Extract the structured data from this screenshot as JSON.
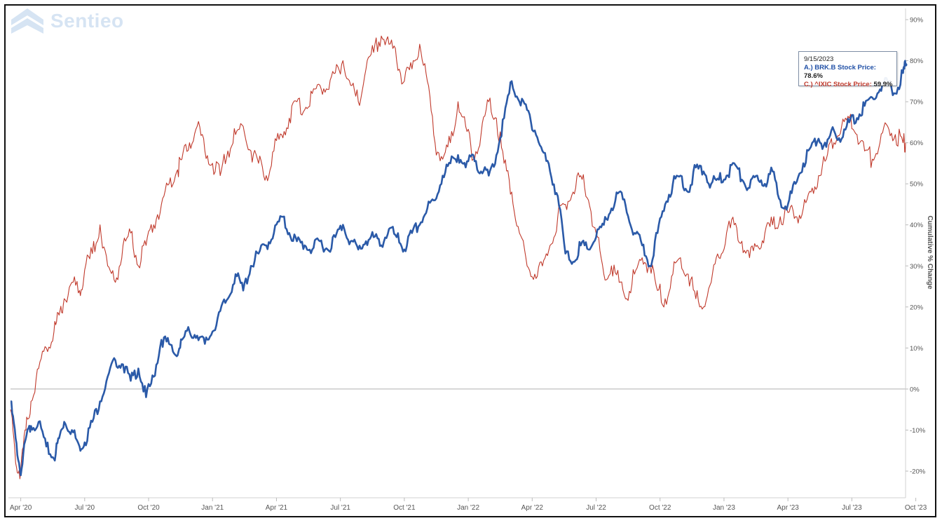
{
  "logo": {
    "text": "Sentieo"
  },
  "tooltip": {
    "date": "9/15/2023",
    "series_a_label": "A.) BRK.B Stock Price:",
    "series_a_value": "78.6%",
    "series_c_label": "C.) ^IXIC Stock Price:",
    "series_c_value": "59.9%"
  },
  "colors": {
    "series_a": "#2b5aa8",
    "series_c": "#c0392b",
    "zero_line": "#b0b0b0",
    "axis_text": "#555555"
  },
  "chart_data": {
    "type": "line",
    "title": "",
    "xlabel": "",
    "ylabel": "Cumulative % Change",
    "ylim": [
      -22,
      92
    ],
    "xlim": [
      2020.2,
      2023.75
    ],
    "y_ticks": [
      -20,
      -10,
      0,
      10,
      20,
      30,
      40,
      50,
      60,
      70,
      80,
      90
    ],
    "y_tick_labels": [
      "-20%",
      "-10%",
      "0%",
      "10%",
      "20%",
      "30%",
      "40%",
      "50%",
      "60%",
      "70%",
      "80%",
      "90%"
    ],
    "x_ticks": [
      2020.25,
      2020.5,
      2020.75,
      2021.0,
      2021.25,
      2021.5,
      2021.75,
      2022.0,
      2022.25,
      2022.5,
      2022.75,
      2023.0,
      2023.25,
      2023.5,
      2023.75
    ],
    "x_tick_labels": [
      "Apr '20",
      "Jul '20",
      "Oct '20",
      "Jan '21",
      "Apr '21",
      "Jul '21",
      "Oct '21",
      "Jan '22",
      "Apr '22",
      "Jul '22",
      "Oct '22",
      "Jan '23",
      "Apr '23",
      "Jul '23",
      "Oct '23"
    ],
    "grid": false,
    "series": [
      {
        "name": "A.) BRK.B Stock Price",
        "color": "#2b5aa8",
        "width": 2.6,
        "x": [
          2020.21,
          2020.23,
          2020.25,
          2020.27,
          2020.29,
          2020.32,
          2020.35,
          2020.38,
          2020.4,
          2020.42,
          2020.45,
          2020.48,
          2020.5,
          2020.53,
          2020.56,
          2020.59,
          2020.62,
          2020.65,
          2020.68,
          2020.71,
          2020.74,
          2020.77,
          2020.8,
          2020.83,
          2020.86,
          2020.88,
          2020.91,
          2020.94,
          2020.97,
          2021.0,
          2021.03,
          2021.06,
          2021.09,
          2021.12,
          2021.15,
          2021.18,
          2021.21,
          2021.24,
          2021.27,
          2021.3,
          2021.33,
          2021.36,
          2021.39,
          2021.42,
          2021.45,
          2021.48,
          2021.51,
          2021.54,
          2021.57,
          2021.6,
          2021.63,
          2021.66,
          2021.69,
          2021.72,
          2021.75,
          2021.78,
          2021.81,
          2021.84,
          2021.87,
          2021.9,
          2021.93,
          2021.96,
          2021.99,
          2022.02,
          2022.05,
          2022.08,
          2022.11,
          2022.14,
          2022.17,
          2022.2,
          2022.23,
          2022.26,
          2022.29,
          2022.32,
          2022.35,
          2022.38,
          2022.41,
          2022.44,
          2022.47,
          2022.5,
          2022.53,
          2022.56,
          2022.59,
          2022.62,
          2022.65,
          2022.68,
          2022.71,
          2022.74,
          2022.77,
          2022.8,
          2022.83,
          2022.86,
          2022.89,
          2022.92,
          2022.95,
          2022.98,
          2023.01,
          2023.04,
          2023.07,
          2023.1,
          2023.13,
          2023.16,
          2023.19,
          2023.22,
          2023.25,
          2023.28,
          2023.31,
          2023.34,
          2023.37,
          2023.4,
          2023.43,
          2023.46,
          2023.49,
          2023.52,
          2023.55,
          2023.58,
          2023.61,
          2023.64,
          2023.67,
          2023.7,
          2023.71
        ],
        "values": [
          -3,
          -12,
          -21,
          -12,
          -9,
          -8,
          -14,
          -17,
          -12,
          -8,
          -10,
          -14,
          -13,
          -8,
          -3,
          3,
          7,
          6,
          2,
          5,
          -2,
          3,
          12,
          11,
          8,
          12,
          14,
          13,
          11,
          14,
          19,
          22,
          28,
          24,
          30,
          33,
          35,
          38,
          42,
          38,
          36,
          35,
          34,
          36,
          34,
          37,
          40,
          36,
          34,
          36,
          37,
          35,
          39,
          37,
          34,
          38,
          40,
          44,
          46,
          52,
          55,
          57,
          54,
          57,
          53,
          52,
          57,
          66,
          75,
          70,
          68,
          63,
          58,
          53,
          47,
          33,
          31,
          35,
          34,
          37,
          40,
          44,
          48,
          43,
          38,
          35,
          30,
          38,
          45,
          50,
          52,
          48,
          54,
          53,
          50,
          51,
          52,
          55,
          51,
          49,
          52,
          50,
          53,
          46,
          45,
          50,
          55,
          59,
          61,
          59,
          63,
          61,
          65,
          66,
          69,
          71,
          73,
          75,
          72,
          77,
          79
        ]
      },
      {
        "name": "C.) ^IXIC Stock Price",
        "color": "#c0392b",
        "width": 1.1,
        "x": [
          2020.21,
          2020.23,
          2020.25,
          2020.27,
          2020.29,
          2020.32,
          2020.35,
          2020.38,
          2020.4,
          2020.42,
          2020.45,
          2020.48,
          2020.5,
          2020.53,
          2020.56,
          2020.59,
          2020.62,
          2020.65,
          2020.68,
          2020.71,
          2020.74,
          2020.77,
          2020.8,
          2020.83,
          2020.86,
          2020.88,
          2020.91,
          2020.94,
          2020.97,
          2021.0,
          2021.03,
          2021.06,
          2021.09,
          2021.12,
          2021.15,
          2021.18,
          2021.21,
          2021.24,
          2021.27,
          2021.3,
          2021.33,
          2021.36,
          2021.39,
          2021.42,
          2021.45,
          2021.48,
          2021.51,
          2021.54,
          2021.57,
          2021.6,
          2021.63,
          2021.66,
          2021.69,
          2021.72,
          2021.75,
          2021.78,
          2021.81,
          2021.84,
          2021.87,
          2021.9,
          2021.93,
          2021.96,
          2021.99,
          2022.02,
          2022.05,
          2022.08,
          2022.11,
          2022.14,
          2022.17,
          2022.2,
          2022.23,
          2022.26,
          2022.29,
          2022.32,
          2022.35,
          2022.38,
          2022.41,
          2022.44,
          2022.47,
          2022.5,
          2022.53,
          2022.56,
          2022.59,
          2022.62,
          2022.65,
          2022.68,
          2022.71,
          2022.74,
          2022.77,
          2022.8,
          2022.83,
          2022.86,
          2022.89,
          2022.92,
          2022.95,
          2022.98,
          2023.01,
          2023.04,
          2023.07,
          2023.1,
          2023.13,
          2023.16,
          2023.19,
          2023.22,
          2023.25,
          2023.28,
          2023.31,
          2023.34,
          2023.37,
          2023.4,
          2023.43,
          2023.46,
          2023.49,
          2023.52,
          2023.55,
          2023.58,
          2023.61,
          2023.64,
          2023.67,
          2023.7,
          2023.71
        ],
        "values": [
          -5,
          -18,
          -20,
          -10,
          -3,
          5,
          10,
          14,
          18,
          22,
          26,
          24,
          29,
          33,
          40,
          30,
          26,
          35,
          38,
          30,
          35,
          40,
          45,
          50,
          53,
          56,
          60,
          64,
          58,
          55,
          52,
          58,
          62,
          64,
          58,
          55,
          52,
          58,
          62,
          66,
          70,
          68,
          72,
          74,
          73,
          77,
          80,
          74,
          70,
          78,
          82,
          86,
          84,
          80,
          75,
          78,
          84,
          75,
          60,
          56,
          60,
          70,
          64,
          56,
          62,
          70,
          66,
          55,
          48,
          38,
          30,
          28,
          30,
          35,
          42,
          45,
          48,
          52,
          46,
          38,
          28,
          30,
          26,
          22,
          28,
          32,
          30,
          24,
          22,
          28,
          32,
          28,
          22,
          20,
          26,
          32,
          38,
          40,
          36,
          32,
          35,
          38,
          40,
          42,
          43,
          42,
          44,
          48,
          52,
          56,
          60,
          64,
          66,
          62,
          58,
          56,
          60,
          64,
          62,
          60,
          60
        ]
      }
    ]
  }
}
